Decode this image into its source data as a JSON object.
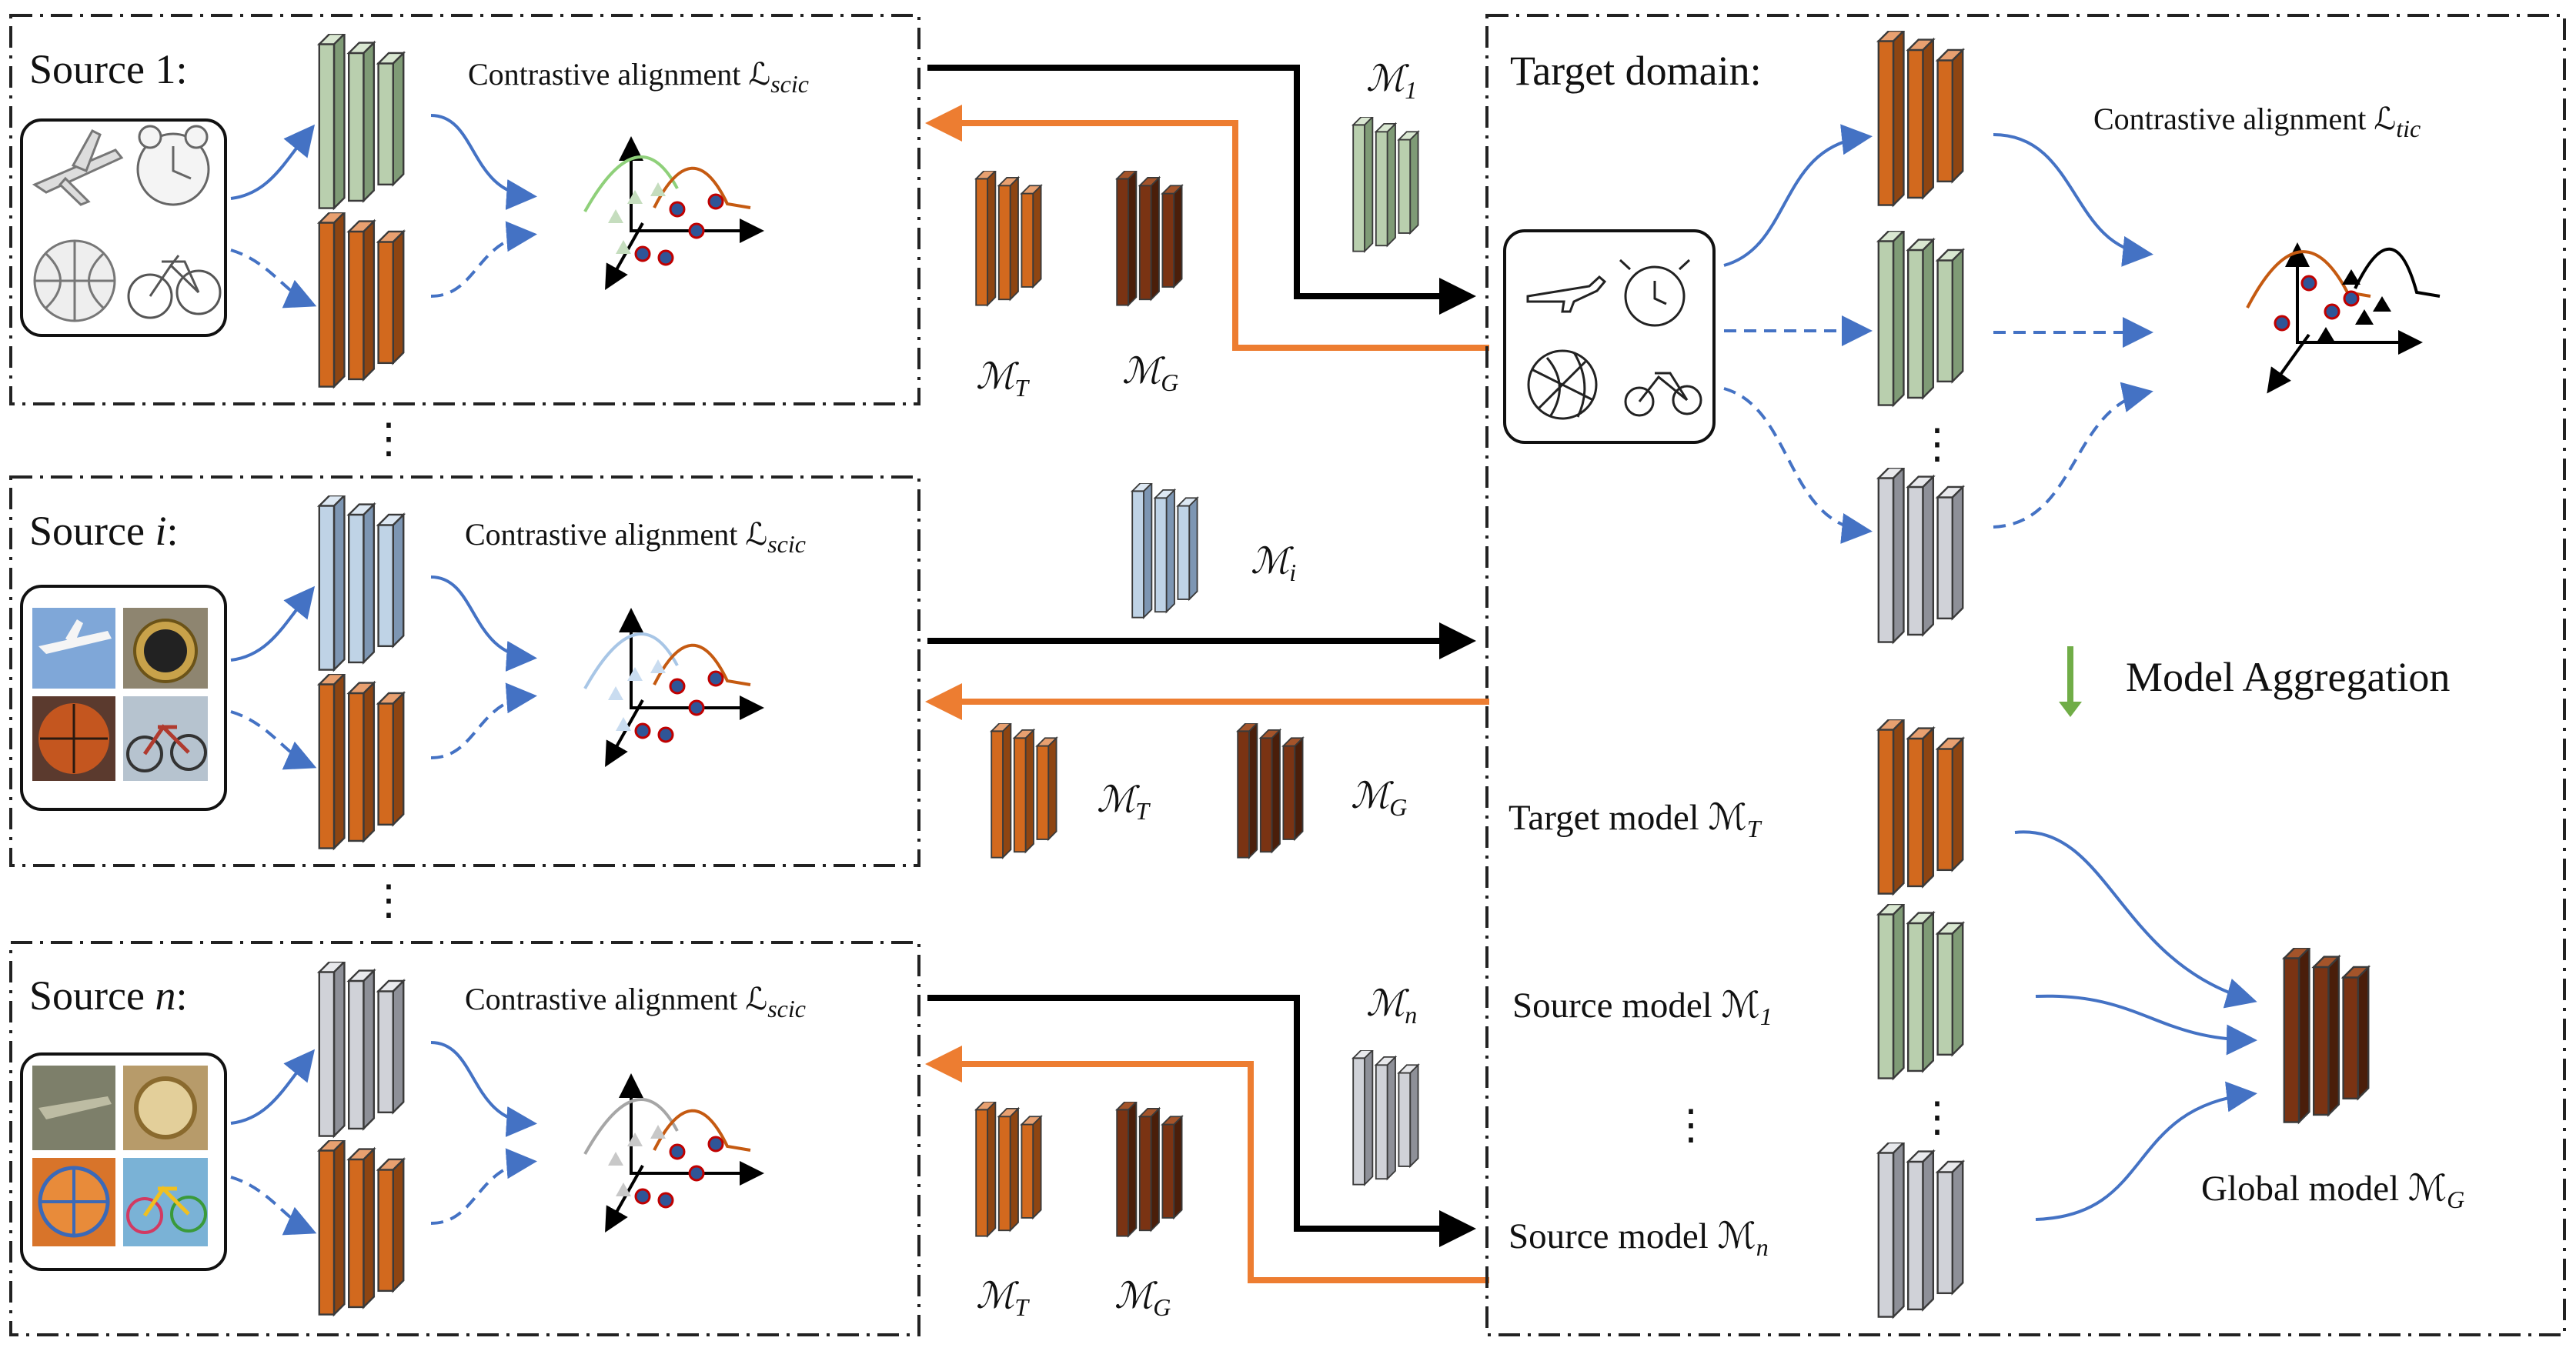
{
  "colors": {
    "orange": "#D2691E",
    "dark_brown": "#7A3313",
    "green": "#B9CFAE",
    "light_blue": "#BFD3E6",
    "gray": "#D0D2D8",
    "blue_arrow": "#4472C4",
    "orange_arrow": "#ED7D31",
    "black_arrow": "#000000",
    "aggregation_arrow": "#70AD47"
  },
  "sources": {
    "s1": {
      "label": "Source 1:",
      "alignment_text": "Contrastive alignment ℒ",
      "alignment_sub": "scic",
      "model_icon": "stacked-feature-extractor-green",
      "image_icons": [
        "airplane-sketch",
        "alarm-clock-sketch",
        "basketball-sketch",
        "bicycle-sketch"
      ]
    },
    "si": {
      "label_prefix": "Source ",
      "label_var": "i",
      "label_suffix": ":",
      "alignment_text": "Contrastive alignment ℒ",
      "alignment_sub": "scic",
      "model_icon": "stacked-feature-extractor-blue",
      "image_icons": [
        "airplane-photo",
        "alarm-clock-photo",
        "basketball-photo",
        "bicycle-photo"
      ]
    },
    "sn": {
      "label_prefix": "Source ",
      "label_var": "n",
      "label_suffix": ":",
      "alignment_text": "Contrastive alignment ℒ",
      "alignment_sub": "scic",
      "model_icon": "stacked-feature-extractor-gray",
      "image_icons": [
        "airplane-painting",
        "alarm-clock-painting",
        "basketball-painting",
        "bicycle-painting"
      ]
    },
    "ellipsis": "⋮"
  },
  "exchange": {
    "m1": {
      "main": "ℳ",
      "sub": "1"
    },
    "mi": {
      "main": "ℳ",
      "sub": "i"
    },
    "mn": {
      "main": "ℳ",
      "sub": "n"
    },
    "mt": {
      "main": "ℳ",
      "sub": "T"
    },
    "mg": {
      "main": "ℳ",
      "sub": "G"
    }
  },
  "target": {
    "label": "Target domain:",
    "alignment_text": "Contrastive alignment ℒ",
    "alignment_sub": "tic",
    "image_icons": [
      "airplane-doodle",
      "alarm-clock-doodle",
      "basketball-doodle",
      "bicycle-doodle"
    ],
    "aggregation_label": "Model Aggregation",
    "target_model_text": "Target model ℳ",
    "target_model_sub": "T",
    "source_model_1_text": "Source model ℳ",
    "source_model_1_sub": "1",
    "source_model_n_text": "Source model ℳ",
    "source_model_n_sub": "n",
    "global_model_text": "Global model ℳ",
    "global_model_sub": "G",
    "ellipsis": "⋮"
  }
}
